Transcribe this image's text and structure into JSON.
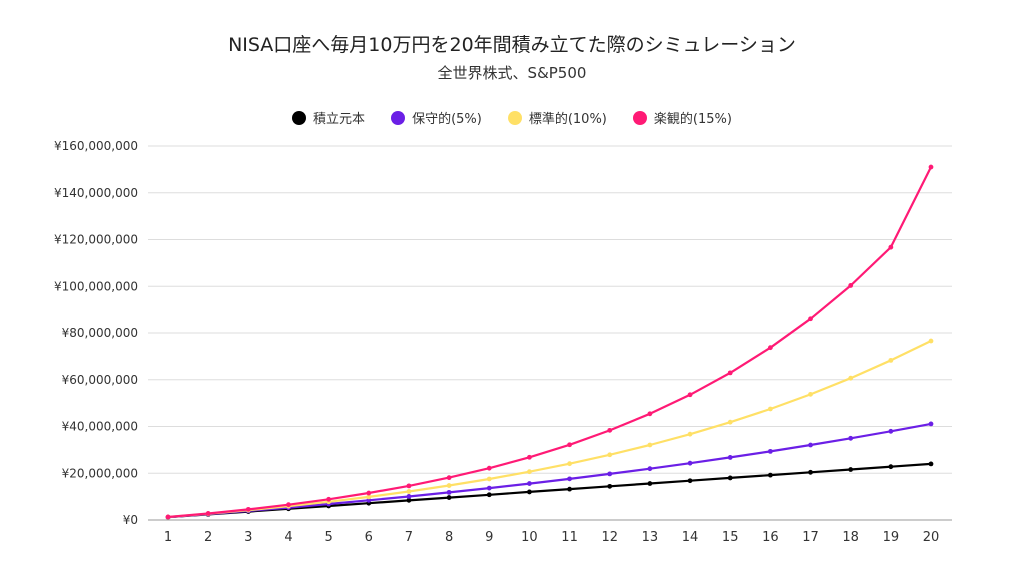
{
  "chart_data": {
    "type": "line",
    "title": "NISA口座へ毎月10万円を20年間積み立てた際のシミュレーション",
    "subtitle": "全世界株式、S&P500",
    "xlabel": "",
    "ylabel": "",
    "ylim": [
      0,
      160000000
    ],
    "yticks": [
      "¥0",
      "¥20,000,000",
      "¥40,000,000",
      "¥60,000,000",
      "¥80,000,000",
      "¥100,000,000",
      "¥120,000,000",
      "¥140,000,000",
      "¥160,000,000"
    ],
    "grid": true,
    "legend_position": "top-center",
    "x": [
      1,
      2,
      3,
      4,
      5,
      6,
      7,
      8,
      9,
      10,
      11,
      12,
      13,
      14,
      15,
      16,
      17,
      18,
      19,
      20
    ],
    "series": [
      {
        "name": "積立元本",
        "color": "#000000",
        "values": [
          1200000,
          2400000,
          3600000,
          4800000,
          6000000,
          7200000,
          8400000,
          9600000,
          10800000,
          12000000,
          13200000,
          14400000,
          15600000,
          16800000,
          18000000,
          19200000,
          20400000,
          21600000,
          22800000,
          24000000
        ]
      },
      {
        "name": "保守的(5%)",
        "color": "#6b1fe6",
        "values": [
          1233000,
          2529000,
          3892000,
          5325000,
          6829000,
          8410000,
          10070000,
          11820000,
          13650000,
          15580000,
          17600000,
          19730000,
          21960000,
          24310000,
          26770000,
          29360000,
          32080000,
          34940000,
          37950000,
          41110000
        ]
      },
      {
        "name": "標準的(10%)",
        "color": "#ffe066",
        "values": [
          1266000,
          2664000,
          4210000,
          5917000,
          7804000,
          9889000,
          12190000,
          14740000,
          17550000,
          20660000,
          24100000,
          27900000,
          32090000,
          36720000,
          41840000,
          47500000,
          53750000,
          60660000,
          68290000,
          76570000
        ]
      },
      {
        "name": "楽観的(15%)",
        "color": "#ff1a75",
        "values": [
          1300000,
          2800000,
          4550000,
          6560000,
          8870000,
          11530000,
          14600000,
          18120000,
          22170000,
          26830000,
          32190000,
          38350000,
          45430000,
          53570000,
          62940000,
          73710000,
          86090000,
          100340000,
          116720000,
          151000000
        ]
      }
    ]
  }
}
